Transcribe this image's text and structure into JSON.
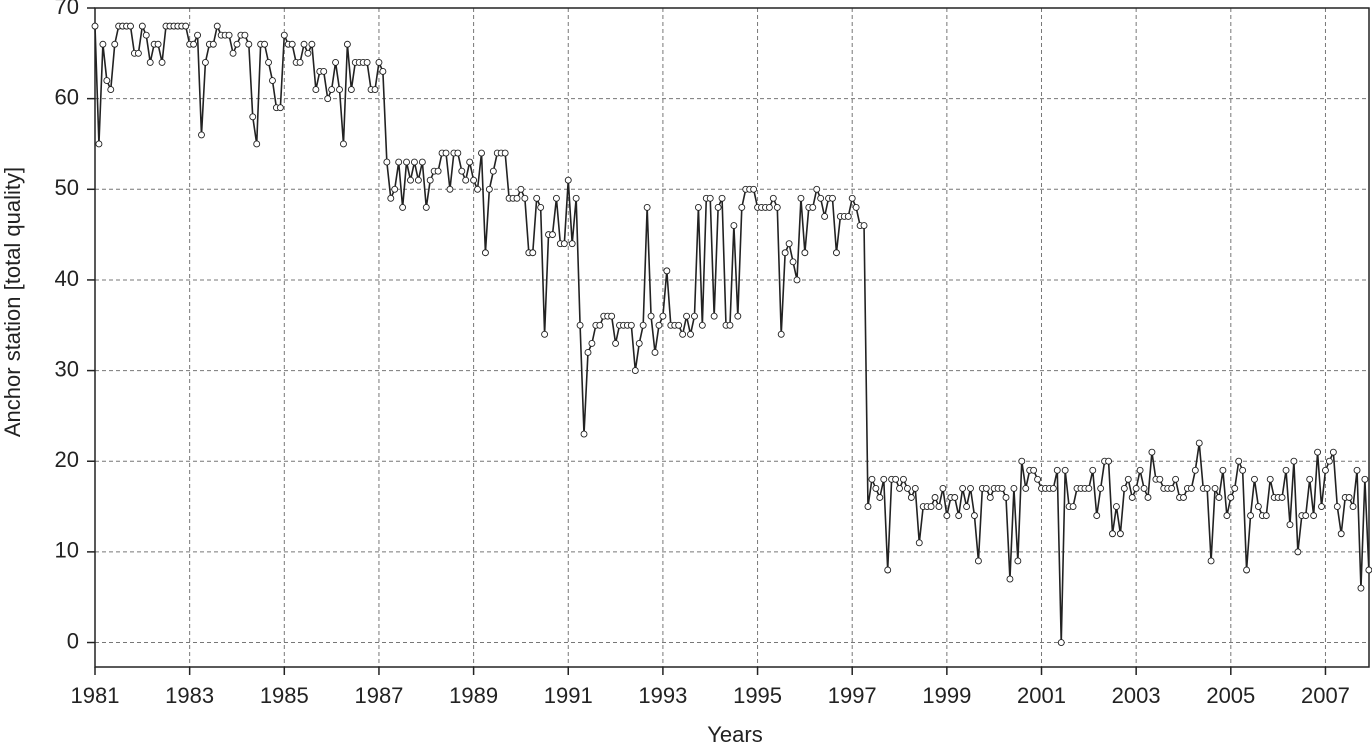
{
  "chart_data": {
    "type": "line",
    "x_label": "Years",
    "y_label": "Anchor station [total quality]",
    "xlim": [
      1981,
      2007.92
    ],
    "ylim": [
      -2.7,
      70
    ],
    "xticks": [
      1981,
      1983,
      1985,
      1987,
      1989,
      1991,
      1993,
      1995,
      1997,
      1999,
      2001,
      2003,
      2005,
      2007
    ],
    "yticks": [
      0,
      10,
      20,
      30,
      40,
      50,
      60,
      70
    ],
    "grid": true,
    "color": "#222222",
    "x": [
      1981,
      1981.083,
      1981.167,
      1981.25,
      1981.333,
      1981.417,
      1981.5,
      1981.583,
      1981.667,
      1981.75,
      1981.833,
      1981.917,
      1982,
      1982.083,
      1982.167,
      1982.25,
      1982.333,
      1982.417,
      1982.5,
      1982.583,
      1982.667,
      1982.75,
      1982.833,
      1982.917,
      1983,
      1983.083,
      1983.167,
      1983.25,
      1983.333,
      1983.417,
      1983.5,
      1983.583,
      1983.667,
      1983.75,
      1983.833,
      1983.917,
      1984,
      1984.083,
      1984.167,
      1984.25,
      1984.333,
      1984.417,
      1984.5,
      1984.583,
      1984.667,
      1984.75,
      1984.833,
      1984.917,
      1985,
      1985.083,
      1985.167,
      1985.25,
      1985.333,
      1985.417,
      1985.5,
      1985.583,
      1985.667,
      1985.75,
      1985.833,
      1985.917,
      1986,
      1986.083,
      1986.167,
      1986.25,
      1986.333,
      1986.417,
      1986.5,
      1986.583,
      1986.667,
      1986.75,
      1986.833,
      1986.917,
      1987,
      1987.083,
      1987.167,
      1987.25,
      1987.333,
      1987.417,
      1987.5,
      1987.583,
      1987.667,
      1987.75,
      1987.833,
      1987.917,
      1988,
      1988.083,
      1988.167,
      1988.25,
      1988.333,
      1988.417,
      1988.5,
      1988.583,
      1988.667,
      1988.75,
      1988.833,
      1988.917,
      1989,
      1989.083,
      1989.167,
      1989.25,
      1989.333,
      1989.417,
      1989.5,
      1989.583,
      1989.667,
      1989.75,
      1989.833,
      1989.917,
      1990,
      1990.083,
      1990.167,
      1990.25,
      1990.333,
      1990.417,
      1990.5,
      1990.583,
      1990.667,
      1990.75,
      1990.833,
      1990.917,
      1991,
      1991.083,
      1991.167,
      1991.25,
      1991.333,
      1991.417,
      1991.5,
      1991.583,
      1991.667,
      1991.75,
      1991.833,
      1991.917,
      1992,
      1992.083,
      1992.167,
      1992.25,
      1992.333,
      1992.417,
      1992.5,
      1992.583,
      1992.667,
      1992.75,
      1992.833,
      1992.917,
      1993,
      1993.083,
      1993.167,
      1993.25,
      1993.333,
      1993.417,
      1993.5,
      1993.583,
      1993.667,
      1993.75,
      1993.833,
      1993.917,
      1994,
      1994.083,
      1994.167,
      1994.25,
      1994.333,
      1994.417,
      1994.5,
      1994.583,
      1994.667,
      1994.75,
      1994.833,
      1994.917,
      1995,
      1995.083,
      1995.167,
      1995.25,
      1995.333,
      1995.417,
      1995.5,
      1995.583,
      1995.667,
      1995.75,
      1995.833,
      1995.917,
      1996,
      1996.083,
      1996.167,
      1996.25,
      1996.333,
      1996.417,
      1996.5,
      1996.583,
      1996.667,
      1996.75,
      1996.833,
      1996.917,
      1997,
      1997.083,
      1997.167,
      1997.25,
      1997.333,
      1997.417,
      1997.5,
      1997.583,
      1997.667,
      1997.75,
      1997.833,
      1997.917,
      1998,
      1998.083,
      1998.167,
      1998.25,
      1998.333,
      1998.417,
      1998.5,
      1998.583,
      1998.667,
      1998.75,
      1998.833,
      1998.917,
      1999,
      1999.083,
      1999.167,
      1999.25,
      1999.333,
      1999.417,
      1999.5,
      1999.583,
      1999.667,
      1999.75,
      1999.833,
      1999.917,
      2000,
      2000.083,
      2000.167,
      2000.25,
      2000.333,
      2000.417,
      2000.5,
      2000.583,
      2000.667,
      2000.75,
      2000.833,
      2000.917,
      2001,
      2001.083,
      2001.167,
      2001.25,
      2001.333,
      2001.417,
      2001.5,
      2001.583,
      2001.667,
      2001.75,
      2001.833,
      2001.917,
      2002,
      2002.083,
      2002.167,
      2002.25,
      2002.333,
      2002.417,
      2002.5,
      2002.583,
      2002.667,
      2002.75,
      2002.833,
      2002.917,
      2003,
      2003.083,
      2003.167,
      2003.25,
      2003.333,
      2003.417,
      2003.5,
      2003.583,
      2003.667,
      2003.75,
      2003.833,
      2003.917,
      2004,
      2004.083,
      2004.167,
      2004.25,
      2004.333,
      2004.417,
      2004.5,
      2004.583,
      2004.667,
      2004.75,
      2004.833,
      2004.917,
      2005,
      2005.083,
      2005.167,
      2005.25,
      2005.333,
      2005.417,
      2005.5,
      2005.583,
      2005.667,
      2005.75,
      2005.833,
      2005.917,
      2006,
      2006.083,
      2006.167,
      2006.25,
      2006.333,
      2006.417,
      2006.5,
      2006.583,
      2006.667,
      2006.75,
      2006.833,
      2006.917,
      2007,
      2007.083,
      2007.167,
      2007.25,
      2007.333,
      2007.417,
      2007.5,
      2007.583,
      2007.667,
      2007.75,
      2007.833,
      2007.917
    ],
    "values": [
      68,
      55,
      66,
      62,
      61,
      66,
      68,
      68,
      68,
      68,
      65,
      65,
      68,
      67,
      64,
      66,
      66,
      64,
      68,
      68,
      68,
      68,
      68,
      68,
      66,
      66,
      67,
      56,
      64,
      66,
      66,
      68,
      67,
      67,
      67,
      65,
      66,
      67,
      67,
      66,
      58,
      55,
      66,
      66,
      64,
      62,
      59,
      59,
      67,
      66,
      66,
      64,
      64,
      66,
      65,
      66,
      61,
      63,
      63,
      60,
      61,
      64,
      61,
      55,
      66,
      61,
      64,
      64,
      64,
      64,
      61,
      61,
      64,
      63,
      53,
      49,
      50,
      53,
      48,
      53,
      51,
      53,
      51,
      53,
      48,
      51,
      52,
      52,
      54,
      54,
      50,
      54,
      54,
      52,
      51,
      53,
      51,
      50,
      54,
      43,
      50,
      52,
      54,
      54,
      54,
      49,
      49,
      49,
      50,
      49,
      43,
      43,
      49,
      48,
      34,
      45,
      45,
      49,
      44,
      44,
      51,
      44,
      49,
      35,
      23,
      32,
      33,
      35,
      35,
      36,
      36,
      36,
      33,
      35,
      35,
      35,
      35,
      30,
      33,
      35,
      48,
      36,
      32,
      35,
      36,
      41,
      35,
      35,
      35,
      34,
      36,
      34,
      36,
      48,
      35,
      49,
      49,
      36,
      48,
      49,
      35,
      35,
      46,
      36,
      48,
      50,
      50,
      50,
      48,
      48,
      48,
      48,
      49,
      48,
      34,
      43,
      44,
      42,
      40,
      49,
      43,
      48,
      48,
      50,
      49,
      47,
      49,
      49,
      43,
      47,
      47,
      47,
      49,
      48,
      46,
      46,
      15,
      18,
      17,
      16,
      18,
      8,
      18,
      18,
      17,
      18,
      17,
      16,
      17,
      11,
      15,
      15,
      15,
      16,
      15,
      17,
      14,
      16,
      16,
      14,
      17,
      15,
      17,
      14,
      9,
      17,
      17,
      16,
      17,
      17,
      17,
      16,
      7,
      17,
      9,
      20,
      17,
      19,
      19,
      18,
      17,
      17,
      17,
      17,
      19,
      0,
      19,
      15,
      15,
      17,
      17,
      17,
      17,
      19,
      14,
      17,
      20,
      20,
      12,
      15,
      12,
      17,
      18,
      16,
      17,
      19,
      17,
      16,
      21,
      18,
      18,
      17,
      17,
      17,
      18,
      16,
      16,
      17,
      17,
      19,
      22,
      17,
      17,
      9,
      17,
      16,
      19,
      14,
      16,
      17,
      20,
      19,
      8,
      14,
      18,
      15,
      14,
      14,
      18,
      16,
      16,
      16,
      19,
      13,
      20,
      10,
      14,
      14,
      18,
      14,
      21,
      15,
      19,
      20,
      21,
      15,
      12,
      16,
      16,
      15,
      19,
      6,
      18,
      8
    ]
  }
}
